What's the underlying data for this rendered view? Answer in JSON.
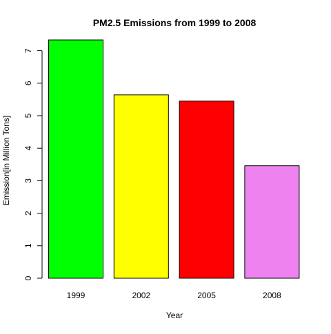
{
  "chart_data": {
    "type": "bar",
    "title": "PM2.5 Emissions from 1999 to 2008",
    "xlabel": "Year",
    "ylabel": "Emission[in Million Tons]",
    "categories": [
      "1999",
      "2002",
      "2005",
      "2008"
    ],
    "values": [
      7.33,
      5.64,
      5.45,
      3.46
    ],
    "colors": [
      "#00ff00",
      "#ffff00",
      "#ff0000",
      "#ee82ee"
    ],
    "ylim": [
      0,
      7.33
    ],
    "yticks": [
      "0",
      "1",
      "2",
      "3",
      "4",
      "5",
      "6",
      "7"
    ],
    "grid": false,
    "legend": "none"
  }
}
